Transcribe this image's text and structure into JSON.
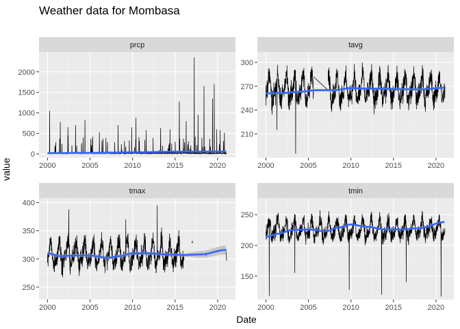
{
  "chart_data": {
    "type": "line",
    "title": "Weather data for Mombasa",
    "xlabel": "Date",
    "ylabel": "value",
    "colors": {
      "panel_bg": "#EBEBEB",
      "grid_major": "#FFFFFF",
      "strip_bg": "#D9D9D9",
      "line": "#000000",
      "smooth": "#3366FF",
      "ribbon": "#A8A8A8"
    },
    "x_ticks": [
      "2000",
      "2005",
      "2010",
      "2015",
      "2020"
    ],
    "xlim": [
      1999.0,
      2022.1
    ],
    "panels": [
      {
        "name": "prcp",
        "ylim": [
          -90,
          2480
        ],
        "y_ticks": [
          0,
          500,
          1000,
          1500,
          2000
        ],
        "base": 5,
        "amp": 0,
        "noise": 25,
        "spikes": 0.06,
        "spike_max": 420,
        "big_spikes": [
          {
            "x": 2000.25,
            "y": 1050
          },
          {
            "x": 2001.5,
            "y": 780
          },
          {
            "x": 2002.4,
            "y": 650
          },
          {
            "x": 2003.3,
            "y": 700
          },
          {
            "x": 2004.4,
            "y": 830
          },
          {
            "x": 2005.3,
            "y": 420
          },
          {
            "x": 2006.1,
            "y": 530
          },
          {
            "x": 2008.3,
            "y": 700
          },
          {
            "x": 2009.9,
            "y": 650
          },
          {
            "x": 2010.4,
            "y": 880
          },
          {
            "x": 2011.6,
            "y": 580
          },
          {
            "x": 2013.3,
            "y": 630
          },
          {
            "x": 2014.4,
            "y": 600
          },
          {
            "x": 2015.5,
            "y": 1280
          },
          {
            "x": 2016.3,
            "y": 800
          },
          {
            "x": 2017.25,
            "y": 2350
          },
          {
            "x": 2017.7,
            "y": 950
          },
          {
            "x": 2018.4,
            "y": 1650
          },
          {
            "x": 2019.4,
            "y": 1350
          },
          {
            "x": 2019.6,
            "y": 1700
          },
          {
            "x": 2019.9,
            "y": 600
          },
          {
            "x": 2020.3,
            "y": 580
          },
          {
            "x": 2020.8,
            "y": 520
          }
        ],
        "gaps": [],
        "smooth": {
          "x": [
            2000,
            2005,
            2010,
            2015,
            2021
          ],
          "y": [
            20,
            25,
            40,
            55,
            60
          ]
        },
        "ribbon": 5
      },
      {
        "name": "tavg",
        "ylim": [
          180,
          313
        ],
        "y_ticks": [
          210,
          240,
          270,
          300
        ],
        "base": 266,
        "amp": 22,
        "noise": 7,
        "spikes": 0,
        "spike_max": 0,
        "big_spikes": [
          {
            "x": 2003.5,
            "y": 185
          },
          {
            "x": 2001.3,
            "y": 215
          }
        ],
        "gaps": [
          [
            2005.6,
            2007.3
          ]
        ],
        "smooth": {
          "x": [
            2000,
            2002,
            2004,
            2006,
            2008,
            2010,
            2012,
            2015,
            2018,
            2021
          ],
          "y": [
            261,
            261.5,
            263,
            265,
            265,
            267.5,
            267,
            266.5,
            266,
            268
          ]
        },
        "ribbon": 1.5
      },
      {
        "name": "tmax",
        "ylim": [
          228,
          408
        ],
        "y_ticks": [
          250,
          300,
          350,
          400
        ],
        "base": 308,
        "amp": 28,
        "noise": 10,
        "spikes": 0,
        "spike_max": 0,
        "big_spikes": [
          {
            "x": 2012.9,
            "y": 395
          },
          {
            "x": 2002.5,
            "y": 388
          },
          {
            "x": 2009.2,
            "y": 370
          }
        ],
        "gaps": [
          [
            2016.05,
            2021.0
          ]
        ],
        "smooth": {
          "x": [
            2000,
            2001.5,
            2003,
            2005,
            2007,
            2008.5,
            2010,
            2012,
            2014,
            2016,
            2018,
            2021
          ],
          "y": [
            310,
            305,
            306,
            306,
            302,
            305,
            310,
            310,
            308,
            307,
            308,
            316
          ]
        },
        "ribbon": 3,
        "ribbon_wide": [
          [
            2016,
            3
          ],
          [
            2018,
            6
          ],
          [
            2021,
            8
          ]
        ]
      },
      {
        "name": "tmin",
        "ylim": [
          112,
          277
        ],
        "y_ticks": [
          150,
          200,
          250
        ],
        "base": 226,
        "amp": 20,
        "noise": 7,
        "spikes": 0,
        "spike_max": 0,
        "big_spikes": [
          {
            "x": 2000.4,
            "y": 118
          },
          {
            "x": 2003.4,
            "y": 155
          },
          {
            "x": 2009.8,
            "y": 128
          },
          {
            "x": 2013.6,
            "y": 120
          },
          {
            "x": 2020.6,
            "y": 117
          },
          {
            "x": 2016.5,
            "y": 140
          }
        ],
        "gaps": [],
        "smooth": {
          "x": [
            2000,
            2001.5,
            2003,
            2005,
            2007,
            2008.5,
            2010,
            2012,
            2014,
            2016,
            2018,
            2021
          ],
          "y": [
            214,
            219,
            225,
            226,
            223,
            229,
            234,
            230,
            226,
            226,
            228,
            238
          ]
        },
        "ribbon": 1.5
      }
    ]
  }
}
